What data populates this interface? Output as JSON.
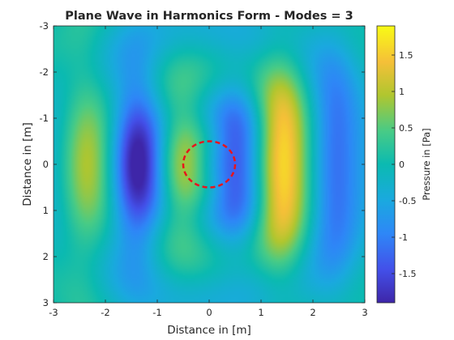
{
  "chart_data": {
    "type": "heatmap",
    "title": "Plane Wave in Harmonics Form - Modes = 3",
    "xlabel": "Distance in [m]",
    "ylabel": "Distance in [m]",
    "colorbar_label": "Pressure in [Pa]",
    "xlim": [
      -3,
      3
    ],
    "ylim": [
      -3,
      3
    ],
    "y_direction": "reverse",
    "x_ticks": [
      "-3",
      "-2",
      "-1",
      "0",
      "1",
      "2",
      "3"
    ],
    "y_ticks": [
      "-3",
      "-2",
      "-1",
      "0",
      "1",
      "2",
      "3"
    ],
    "clim": [
      -1.9,
      1.9
    ],
    "colorbar_ticks": [
      "-1.5",
      "-1",
      "-0.5",
      "0",
      "0.5",
      "1",
      "1.5"
    ],
    "colormap": "parula",
    "field": {
      "description_of_shape": "standing-wave stripes along x, cylinder at origin",
      "peaks": [
        {
          "x": -2.4,
          "y": 0,
          "value": 1.0
        },
        {
          "x": -1.4,
          "y": 0,
          "value": -1.85
        },
        {
          "x": -0.5,
          "y": 0,
          "value": 1.05
        },
        {
          "x": 0.5,
          "y": 0,
          "value": -1.2
        },
        {
          "x": 1.4,
          "y": 0,
          "value": 1.85
        },
        {
          "x": 2.4,
          "y": 0,
          "value": -1.05
        }
      ]
    },
    "annotation": {
      "shape": "circle",
      "center": [
        0,
        0
      ],
      "radius": 0.5,
      "style": "red dashed"
    }
  }
}
